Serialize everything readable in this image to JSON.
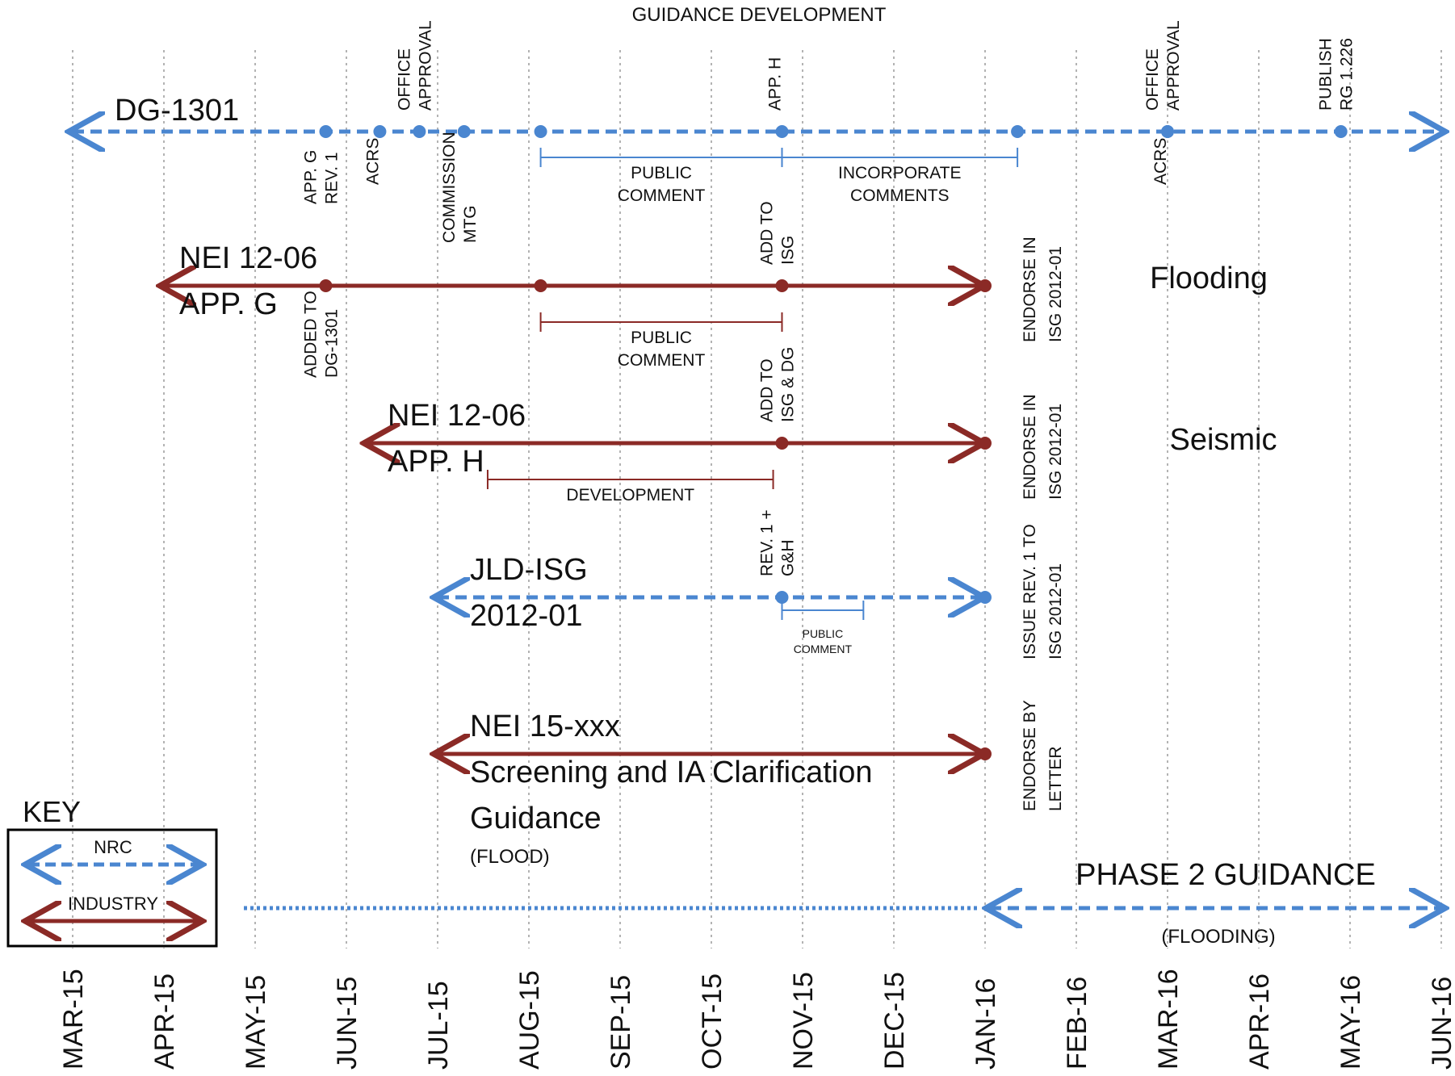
{
  "title": "GUIDANCE DEVELOPMENT",
  "colors": {
    "nrc": "#4a86d0",
    "industry": "#8b2a26",
    "grid": "#9a9a9a",
    "text": "#111111"
  },
  "months": [
    "MAR-15",
    "APR-15",
    "MAY-15",
    "JUN-15",
    "JUL-15",
    "AUG-15",
    "SEP-15",
    "OCT-15",
    "NOV-15",
    "DEC-15",
    "JAN-16",
    "FEB-16",
    "MAR-16",
    "APR-16",
    "MAY-16",
    "JUN-16"
  ],
  "tracks": [
    {
      "id": "dg1301",
      "kind": "nrc",
      "label_lines": [
        "DG-1301"
      ],
      "start": "2015-03-01",
      "end": "2016-06-01",
      "start_arrow": true,
      "end_arrow": true,
      "milestones": [
        {
          "date": "2015-05-25",
          "label": [
            "APP. G",
            "REV. 1"
          ],
          "side": "below"
        },
        {
          "date": "2015-06-12",
          "label": [
            "ACRS"
          ],
          "side": "below"
        },
        {
          "date": "2015-06-25",
          "label": [
            "OFFICE",
            "APPROVAL"
          ],
          "side": "above"
        },
        {
          "date": "2015-07-10",
          "label": [
            "COMMISSION",
            "MTG"
          ],
          "side": "below"
        },
        {
          "date": "2015-08-05",
          "label": [],
          "side": "below"
        },
        {
          "date": "2015-10-25",
          "label": [
            "APP. H"
          ],
          "side": "above"
        },
        {
          "date": "2016-01-12",
          "label": [],
          "side": "below"
        },
        {
          "date": "2016-03-01",
          "label": [
            "OFFICE",
            "APPROVAL"
          ],
          "side": "above"
        },
        {
          "date": "2016-03-01",
          "label": [
            "ACRS"
          ],
          "side": "below"
        },
        {
          "date": "2016-04-28",
          "label": [
            "PUBLISH",
            "RG 1.226"
          ],
          "side": "above"
        }
      ],
      "spans": [
        {
          "start": "2015-08-05",
          "end": "2015-10-25",
          "label": [
            "PUBLIC",
            "COMMENT"
          ]
        },
        {
          "start": "2015-10-25",
          "end": "2016-01-12",
          "label": [
            "INCORPORATE",
            "COMMENTS"
          ]
        }
      ]
    },
    {
      "id": "nei-app-g",
      "kind": "industry",
      "label_lines": [
        "NEI 12-06",
        "APP. G"
      ],
      "start": "2015-04-01",
      "end": "2016-01-01",
      "start_arrow": true,
      "end_arrow": true,
      "milestones": [
        {
          "date": "2015-05-25",
          "label": [
            "ADDED TO",
            "DG-1301"
          ],
          "side": "below"
        },
        {
          "date": "2015-08-05",
          "label": [],
          "side": "below"
        },
        {
          "date": "2015-10-25",
          "label": [
            "ADD TO",
            "ISG"
          ],
          "side": "above"
        },
        {
          "date": "2016-01-01",
          "label": [],
          "side": "below"
        }
      ],
      "spans": [
        {
          "start": "2015-08-05",
          "end": "2015-10-25",
          "label": [
            "PUBLIC",
            "COMMENT"
          ]
        }
      ],
      "right_note": [
        "ENDORSE IN",
        "ISG 2012-01"
      ],
      "topic": "Flooding"
    },
    {
      "id": "nei-app-h",
      "kind": "industry",
      "label_lines": [
        "NEI 12-06",
        "APP. H"
      ],
      "start": "2015-06-08",
      "end": "2016-01-01",
      "start_arrow": true,
      "end_arrow": true,
      "milestones": [
        {
          "date": "2015-10-25",
          "label": [
            "ADD TO",
            "ISG & DG"
          ],
          "side": "above"
        },
        {
          "date": "2016-01-01",
          "label": [],
          "side": "below"
        }
      ],
      "spans": [
        {
          "start": "2015-07-18",
          "end": "2015-10-22",
          "label": [
            "DEVELOPMENT"
          ]
        }
      ],
      "right_note": [
        "ENDORSE IN",
        "ISG 2012-01"
      ],
      "topic": "Seismic"
    },
    {
      "id": "jld-isg",
      "kind": "nrc",
      "label_lines": [
        "JLD-ISG",
        "2012-01"
      ],
      "start": "2015-07-01",
      "end": "2016-01-01",
      "start_arrow": true,
      "end_arrow": true,
      "milestones": [
        {
          "date": "2015-10-25",
          "label": [
            "REV. 1 +",
            "G&H"
          ],
          "side": "above"
        },
        {
          "date": "2016-01-01",
          "label": [],
          "side": "below"
        }
      ],
      "spans": [
        {
          "start": "2015-10-25",
          "end": "2015-11-21",
          "label": [
            "PUBLIC",
            "COMMENT"
          ],
          "small": true
        }
      ],
      "right_note": [
        "ISSUE REV. 1 TO",
        "ISG 2012-01"
      ]
    },
    {
      "id": "nei-15",
      "kind": "industry",
      "label_lines": [
        "NEI 15-xxx",
        "Screening and IA Clarification",
        "Guidance"
      ],
      "sub_label": "(FLOOD)",
      "start": "2015-07-01",
      "end": "2016-01-01",
      "start_arrow": true,
      "end_arrow": true,
      "milestones": [
        {
          "date": "2016-01-01",
          "label": [],
          "side": "below"
        }
      ],
      "spans": [],
      "right_note": [
        "ENDORSE BY",
        "LETTER"
      ]
    }
  ],
  "phase2": {
    "label": "PHASE 2 GUIDANCE",
    "sub_label": "(FLOODING)",
    "dotted_start": "2015-05-01",
    "dotted_end": "2016-01-01",
    "dashed_start": "2016-01-01",
    "dashed_end": "2016-06-01"
  },
  "key": {
    "title": "KEY",
    "nrc_label": "NRC",
    "industry_label": "INDUSTRY"
  }
}
